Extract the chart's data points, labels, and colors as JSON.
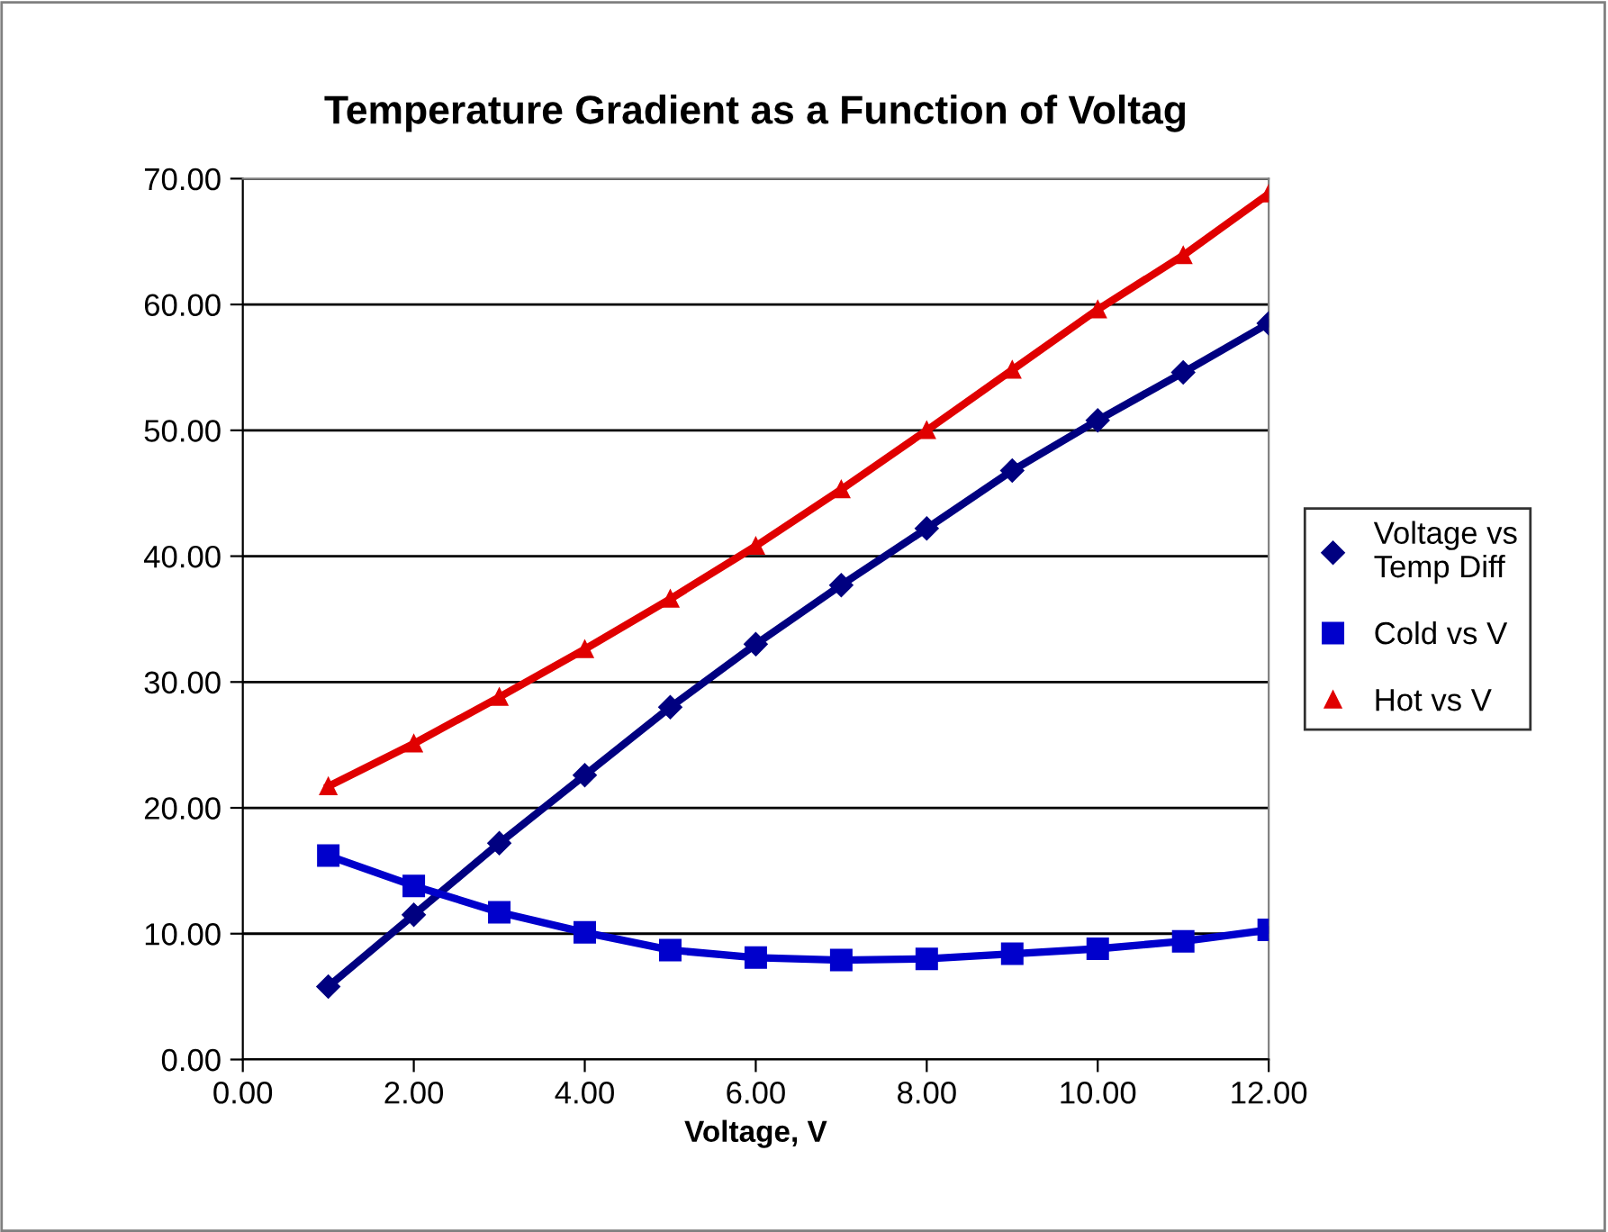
{
  "chart_data": {
    "type": "line",
    "title": "Temperature Gradient as a Function of Voltag",
    "xlabel": "Voltage, V",
    "x": [
      1,
      2,
      3,
      4,
      5,
      6,
      7,
      8,
      9,
      10,
      11,
      12
    ],
    "series": [
      {
        "name": "Voltage vs Temp Diff",
        "color": "#000080",
        "marker": "diamond",
        "values": [
          5.8,
          11.5,
          17.2,
          22.6,
          28.0,
          33.0,
          37.7,
          42.2,
          46.8,
          50.8,
          54.6,
          58.5
        ]
      },
      {
        "name": "Cold vs V",
        "color": "#0000cc",
        "marker": "square",
        "values": [
          16.2,
          13.8,
          11.7,
          10.1,
          8.7,
          8.1,
          7.9,
          8.0,
          8.4,
          8.8,
          9.4,
          10.3
        ]
      },
      {
        "name": "Hot vs V",
        "color": "#e00000",
        "marker": "triangle",
        "values": [
          21.7,
          25.1,
          28.8,
          32.6,
          36.6,
          40.8,
          45.3,
          50.0,
          54.8,
          59.6,
          63.9,
          68.8
        ]
      }
    ],
    "xlim": [
      0,
      12
    ],
    "ylim": [
      0,
      70
    ],
    "xticks": [
      {
        "value": 0,
        "label": "0.00"
      },
      {
        "value": 2,
        "label": "2.00"
      },
      {
        "value": 4,
        "label": "4.00"
      },
      {
        "value": 6,
        "label": "6.00"
      },
      {
        "value": 8,
        "label": "8.00"
      },
      {
        "value": 10,
        "label": "10.00"
      },
      {
        "value": 12,
        "label": "12.00"
      }
    ],
    "yticks": [
      {
        "value": 0,
        "label": "0.00"
      },
      {
        "value": 10,
        "label": "10.00"
      },
      {
        "value": 20,
        "label": "20.00"
      },
      {
        "value": 30,
        "label": "30.00"
      },
      {
        "value": 40,
        "label": "40.00"
      },
      {
        "value": 50,
        "label": "50.00"
      },
      {
        "value": 60,
        "label": "60.00"
      },
      {
        "value": 70,
        "label": "70.00"
      }
    ],
    "grid": "y",
    "legend": "right",
    "line_style": "solid"
  }
}
